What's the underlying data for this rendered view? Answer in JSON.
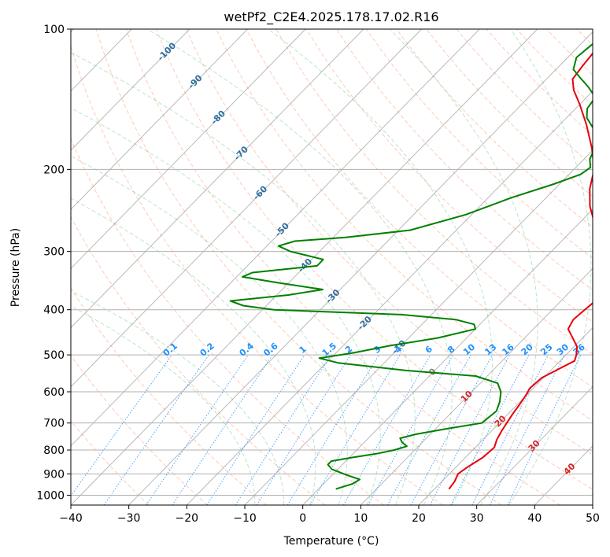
{
  "chart_data": {
    "type": "line",
    "title": "wetPf2_C2E4.2025.178.17.02.R16",
    "xlabel": "Temperature (°C)",
    "ylabel": "Pressure (hPa)",
    "xlim": [
      -40,
      50
    ],
    "ylim": [
      1050,
      100
    ],
    "y_scale": "log",
    "skew": "skew-T / log-p",
    "grid": true,
    "x_ticks": [
      -40,
      -30,
      -20,
      -10,
      0,
      10,
      20,
      30,
      40,
      50
    ],
    "y_ticks": [
      100,
      200,
      300,
      400,
      500,
      600,
      700,
      800,
      900,
      1000
    ],
    "series": [
      {
        "color": "#e8000b",
        "points": [
          {
            "p": 970,
            "t": 22.5
          },
          {
            "p": 935,
            "t": 22.2
          },
          {
            "p": 900,
            "t": 21.5
          },
          {
            "p": 870,
            "t": 22.0
          },
          {
            "p": 830,
            "t": 23.0
          },
          {
            "p": 790,
            "t": 23.3
          },
          {
            "p": 760,
            "t": 22.4
          },
          {
            "p": 730,
            "t": 21.8
          },
          {
            "p": 700,
            "t": 21.3
          },
          {
            "p": 670,
            "t": 20.8
          },
          {
            "p": 640,
            "t": 20.4
          },
          {
            "p": 610,
            "t": 19.9
          },
          {
            "p": 590,
            "t": 19.4
          },
          {
            "p": 560,
            "t": 19.7
          },
          {
            "p": 535,
            "t": 21.2
          },
          {
            "p": 515,
            "t": 22.5
          },
          {
            "p": 500,
            "t": 21.8
          },
          {
            "p": 480,
            "t": 20.5
          },
          {
            "p": 460,
            "t": 18.3
          },
          {
            "p": 440,
            "t": 16.0
          },
          {
            "p": 420,
            "t": 15.3
          },
          {
            "p": 400,
            "t": 15.6
          },
          {
            "p": 380,
            "t": 16.0
          },
          {
            "p": 360,
            "t": 14.5
          },
          {
            "p": 340,
            "t": 12.5
          },
          {
            "p": 320,
            "t": 10.5
          },
          {
            "p": 300,
            "t": 8.5
          },
          {
            "p": 280,
            "t": 5.5
          },
          {
            "p": 260,
            "t": 2.5
          },
          {
            "p": 240,
            "t": -1.0
          },
          {
            "p": 220,
            "t": -4.0
          },
          {
            "p": 200,
            "t": -6.5
          },
          {
            "p": 180,
            "t": -10.5
          },
          {
            "p": 160,
            "t": -15.5
          },
          {
            "p": 145,
            "t": -20.0
          },
          {
            "p": 135,
            "t": -23.5
          },
          {
            "p": 128,
            "t": -25.5
          },
          {
            "p": 120,
            "t": -26.0
          },
          {
            "p": 110,
            "t": -26.5
          },
          {
            "p": 102,
            "t": -26.0
          }
        ]
      },
      {
        "color": "#008000",
        "points": [
          {
            "p": 970,
            "t": 3.0
          },
          {
            "p": 945,
            "t": 5.0
          },
          {
            "p": 925,
            "t": 5.5
          },
          {
            "p": 905,
            "t": 2.5
          },
          {
            "p": 880,
            "t": -1.0
          },
          {
            "p": 860,
            "t": -2.5
          },
          {
            "p": 845,
            "t": -2.5
          },
          {
            "p": 830,
            "t": 0.5
          },
          {
            "p": 815,
            "t": 4.0
          },
          {
            "p": 800,
            "t": 6.5
          },
          {
            "p": 785,
            "t": 8.0
          },
          {
            "p": 770,
            "t": 6.5
          },
          {
            "p": 755,
            "t": 5.5
          },
          {
            "p": 740,
            "t": 7.5
          },
          {
            "p": 720,
            "t": 12.0
          },
          {
            "p": 700,
            "t": 17.0
          },
          {
            "p": 660,
            "t": 17.5
          },
          {
            "p": 630,
            "t": 16.5
          },
          {
            "p": 600,
            "t": 15.0
          },
          {
            "p": 575,
            "t": 13.0
          },
          {
            "p": 555,
            "t": 8.0
          },
          {
            "p": 540,
            "t": -5.0
          },
          {
            "p": 520,
            "t": -18.0
          },
          {
            "p": 508,
            "t": -22.0
          },
          {
            "p": 495,
            "t": -17.0
          },
          {
            "p": 478,
            "t": -12.0
          },
          {
            "p": 460,
            "t": -5.0
          },
          {
            "p": 440,
            "t": 0.0
          },
          {
            "p": 430,
            "t": -1.0
          },
          {
            "p": 420,
            "t": -5.0
          },
          {
            "p": 410,
            "t": -15.0
          },
          {
            "p": 400,
            "t": -38.0
          },
          {
            "p": 392,
            "t": -44.0
          },
          {
            "p": 383,
            "t": -47.0
          },
          {
            "p": 372,
            "t": -38.0
          },
          {
            "p": 362,
            "t": -33.0
          },
          {
            "p": 350,
            "t": -42.0
          },
          {
            "p": 340,
            "t": -49.0
          },
          {
            "p": 333,
            "t": -48.0
          },
          {
            "p": 322,
            "t": -38.0
          },
          {
            "p": 312,
            "t": -38.0
          },
          {
            "p": 300,
            "t": -45.0
          },
          {
            "p": 292,
            "t": -48.0
          },
          {
            "p": 285,
            "t": -46.0
          },
          {
            "p": 280,
            "t": -38.0
          },
          {
            "p": 270,
            "t": -28.0
          },
          {
            "p": 250,
            "t": -21.0
          },
          {
            "p": 230,
            "t": -16.0
          },
          {
            "p": 215,
            "t": -11.0
          },
          {
            "p": 205,
            "t": -8.0
          },
          {
            "p": 198,
            "t": -7.5
          },
          {
            "p": 190,
            "t": -9.0
          },
          {
            "p": 180,
            "t": -10.0
          },
          {
            "p": 172,
            "t": -10.5
          },
          {
            "p": 165,
            "t": -13.0
          },
          {
            "p": 155,
            "t": -16.5
          },
          {
            "p": 148,
            "t": -18.0
          },
          {
            "p": 140,
            "t": -18.5
          },
          {
            "p": 133,
            "t": -21.5
          },
          {
            "p": 127,
            "t": -24.5
          },
          {
            "p": 122,
            "t": -27.0
          },
          {
            "p": 115,
            "t": -28.5
          },
          {
            "p": 108,
            "t": -28.0
          },
          {
            "p": 100,
            "t": -26.5
          }
        ]
      }
    ],
    "reference_lines": {
      "dry_adiabats_color": "#ffa07a",
      "moist_adiabats_color": "#3cb371",
      "mixing_ratio_color": "#1e90ff",
      "isotherm_color": "#808080"
    },
    "isotherm_labels": [
      {
        "text": "-100",
        "t": -100,
        "p": 112,
        "color": "#2e6f9e"
      },
      {
        "text": "-90",
        "t": -90,
        "p": 130,
        "color": "#2e6f9e"
      },
      {
        "text": "-80",
        "t": -80,
        "p": 155,
        "color": "#2e6f9e"
      },
      {
        "text": "-70",
        "t": -70,
        "p": 185,
        "color": "#2e6f9e"
      },
      {
        "text": "-60",
        "t": -60,
        "p": 225,
        "color": "#2e6f9e"
      },
      {
        "text": "-50",
        "t": -50,
        "p": 270,
        "color": "#2e6f9e"
      },
      {
        "text": "-40",
        "t": -40,
        "p": 322,
        "color": "#2e6f9e"
      },
      {
        "text": "-30",
        "t": -30,
        "p": 375,
        "color": "#2e6f9e"
      },
      {
        "text": "-20",
        "t": -20,
        "p": 428,
        "color": "#2e6f9e"
      },
      {
        "text": "-10",
        "t": -10,
        "p": 482,
        "color": "#2e6f9e"
      },
      {
        "text": "0",
        "t": 0,
        "p": 545,
        "color": "#808080"
      },
      {
        "text": "10",
        "t": 10,
        "p": 615,
        "color": "#d62728"
      },
      {
        "text": "20",
        "t": 20,
        "p": 695,
        "color": "#d62728"
      },
      {
        "text": "30",
        "t": 30,
        "p": 785,
        "color": "#d62728"
      },
      {
        "text": "40",
        "t": 40,
        "p": 880,
        "color": "#d62728"
      }
    ],
    "mixing_ratio_labels": [
      "0.1",
      "0.2",
      "0.4",
      "0.6",
      "1",
      "1.5",
      "2",
      "3",
      "4",
      "6",
      "8",
      "10",
      "13",
      "16",
      "20",
      "25",
      "30",
      "36"
    ]
  }
}
